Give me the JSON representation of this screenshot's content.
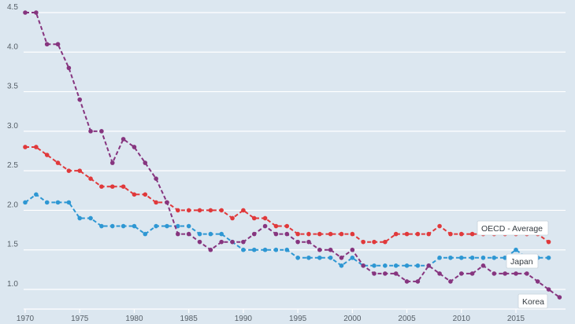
{
  "chart_data": {
    "type": "line",
    "title": "",
    "xlabel": "",
    "ylabel": "",
    "xlim": [
      1970,
      2019
    ],
    "ylim": [
      0.85,
      4.6
    ],
    "grid": true,
    "x_ticks": [
      1970,
      1975,
      1980,
      1985,
      1990,
      1995,
      2000,
      2005,
      2010,
      2015
    ],
    "x_tick_labels": [
      "1970",
      "1975",
      "1980",
      "1985",
      "1990",
      "1995",
      "2000",
      "2005",
      "2010",
      "2015"
    ],
    "y_ticks": [
      1.0,
      1.5,
      2.0,
      2.5,
      3.0,
      3.5,
      4.0,
      4.5
    ],
    "y_tick_labels": [
      "1.0",
      "1.5",
      "2.0",
      "2.5",
      "3.0",
      "3.5",
      "4.0",
      "4.5"
    ],
    "series": [
      {
        "name": "OECD - Average",
        "color": "#e0393b",
        "x": [
          1970,
          1971,
          1972,
          1973,
          1974,
          1975,
          1976,
          1977,
          1978,
          1979,
          1980,
          1981,
          1982,
          1983,
          1984,
          1985,
          1986,
          1987,
          1988,
          1989,
          1990,
          1991,
          1992,
          1993,
          1994,
          1995,
          1996,
          1997,
          1998,
          1999,
          2000,
          2001,
          2002,
          2003,
          2004,
          2005,
          2006,
          2007,
          2008,
          2009,
          2010,
          2011,
          2012,
          2013,
          2014,
          2015,
          2016,
          2017,
          2018
        ],
        "values": [
          2.8,
          2.8,
          2.7,
          2.6,
          2.5,
          2.5,
          2.4,
          2.3,
          2.3,
          2.3,
          2.2,
          2.2,
          2.1,
          2.1,
          2.0,
          2.0,
          2.0,
          2.0,
          2.0,
          1.9,
          2.0,
          1.9,
          1.9,
          1.8,
          1.8,
          1.7,
          1.7,
          1.7,
          1.7,
          1.7,
          1.7,
          1.6,
          1.6,
          1.6,
          1.7,
          1.7,
          1.7,
          1.7,
          1.8,
          1.7,
          1.7,
          1.7,
          1.7,
          1.7,
          1.7,
          1.7,
          1.7,
          1.7,
          1.6
        ]
      },
      {
        "name": "Japan",
        "color": "#2e97d3",
        "x": [
          1970,
          1971,
          1972,
          1973,
          1974,
          1975,
          1976,
          1977,
          1978,
          1979,
          1980,
          1981,
          1982,
          1983,
          1984,
          1985,
          1986,
          1987,
          1988,
          1989,
          1990,
          1991,
          1992,
          1993,
          1994,
          1995,
          1996,
          1997,
          1998,
          1999,
          2000,
          2001,
          2002,
          2003,
          2004,
          2005,
          2006,
          2007,
          2008,
          2009,
          2010,
          2011,
          2012,
          2013,
          2014,
          2015,
          2016,
          2017,
          2018
        ],
        "values": [
          2.1,
          2.2,
          2.1,
          2.1,
          2.1,
          1.9,
          1.9,
          1.8,
          1.8,
          1.8,
          1.8,
          1.7,
          1.8,
          1.8,
          1.8,
          1.8,
          1.7,
          1.7,
          1.7,
          1.6,
          1.5,
          1.5,
          1.5,
          1.5,
          1.5,
          1.4,
          1.4,
          1.4,
          1.4,
          1.3,
          1.4,
          1.3,
          1.3,
          1.3,
          1.3,
          1.3,
          1.3,
          1.3,
          1.4,
          1.4,
          1.4,
          1.4,
          1.4,
          1.4,
          1.4,
          1.5,
          1.4,
          1.4,
          1.4
        ]
      },
      {
        "name": "Korea",
        "color": "#86357f",
        "x": [
          1970,
          1971,
          1972,
          1973,
          1974,
          1975,
          1976,
          1977,
          1978,
          1979,
          1980,
          1981,
          1982,
          1983,
          1984,
          1985,
          1986,
          1987,
          1988,
          1989,
          1990,
          1991,
          1992,
          1993,
          1994,
          1995,
          1996,
          1997,
          1998,
          1999,
          2000,
          2001,
          2002,
          2003,
          2004,
          2005,
          2006,
          2007,
          2008,
          2009,
          2010,
          2011,
          2012,
          2013,
          2014,
          2015,
          2016,
          2017,
          2018,
          2019
        ],
        "values": [
          4.5,
          4.5,
          4.1,
          4.1,
          3.8,
          3.4,
          3.0,
          3.0,
          2.6,
          2.9,
          2.8,
          2.6,
          2.4,
          2.1,
          1.7,
          1.7,
          1.6,
          1.5,
          1.6,
          1.6,
          1.6,
          1.7,
          1.8,
          1.7,
          1.7,
          1.6,
          1.6,
          1.5,
          1.5,
          1.4,
          1.5,
          1.3,
          1.2,
          1.2,
          1.2,
          1.1,
          1.1,
          1.3,
          1.2,
          1.1,
          1.2,
          1.2,
          1.3,
          1.2,
          1.2,
          1.2,
          1.2,
          1.1,
          1.0,
          0.9
        ]
      }
    ]
  }
}
